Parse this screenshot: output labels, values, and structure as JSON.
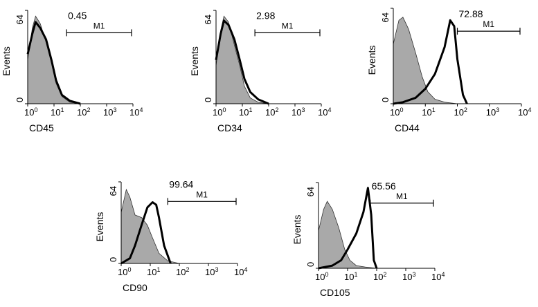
{
  "y_axis_label": "Events",
  "y_tick_top": "64",
  "y_tick_bottom": "0",
  "x_tick_labels": [
    "10",
    "10",
    "10",
    "10",
    "10"
  ],
  "x_tick_exponents": [
    "0",
    "1",
    "2",
    "3",
    "4"
  ],
  "gate_label": "M1",
  "panels": [
    {
      "id": "cd45",
      "marker": "CD45",
      "percent": "0.45"
    },
    {
      "id": "cd34",
      "marker": "CD34",
      "percent": "2.98"
    },
    {
      "id": "cd44",
      "marker": "CD44",
      "percent": "72.88"
    },
    {
      "id": "cd90",
      "marker": "CD90",
      "percent": "99.64"
    },
    {
      "id": "cd105",
      "marker": "CD105",
      "percent": "65.56"
    }
  ],
  "chart_data": [
    {
      "type": "area",
      "title": "",
      "xlabel": "CD45",
      "ylabel": "Events",
      "x_scale": "log",
      "xlim": [
        1,
        10000
      ],
      "ylim": [
        0,
        64
      ],
      "gate": {
        "name": "M1",
        "x_range": [
          30,
          10000
        ],
        "percent": 0.45
      },
      "series": [
        {
          "name": "",
          "style": "filled-grey",
          "x": [
            1,
            1.5,
            2,
            3,
            5,
            8,
            12,
            20,
            40,
            100
          ],
          "y": [
            30,
            52,
            60,
            55,
            42,
            28,
            14,
            5,
            1,
            0
          ]
        },
        {
          "name": "",
          "style": "bold-outline",
          "x": [
            1,
            1.5,
            2,
            3,
            5,
            8,
            12,
            20,
            40,
            100
          ],
          "y": [
            34,
            48,
            56,
            52,
            44,
            30,
            16,
            6,
            2,
            0
          ]
        }
      ]
    },
    {
      "type": "area",
      "title": "",
      "xlabel": "CD34",
      "ylabel": "Events",
      "x_scale": "log",
      "xlim": [
        1,
        10000
      ],
      "ylim": [
        0,
        64
      ],
      "gate": {
        "name": "M1",
        "x_range": [
          30,
          10000
        ],
        "percent": 2.98
      },
      "series": [
        {
          "name": "",
          "style": "filled-grey",
          "x": [
            1,
            1.5,
            2,
            3,
            5,
            8,
            12,
            20,
            40,
            100
          ],
          "y": [
            26,
            50,
            60,
            56,
            40,
            26,
            12,
            4,
            1,
            0
          ]
        },
        {
          "name": "",
          "style": "bold-outline",
          "x": [
            1,
            1.5,
            2,
            3,
            5,
            8,
            12,
            20,
            40,
            100
          ],
          "y": [
            30,
            48,
            57,
            54,
            44,
            30,
            17,
            8,
            3,
            0
          ]
        }
      ]
    },
    {
      "type": "area",
      "title": "",
      "xlabel": "CD44",
      "ylabel": "Events",
      "x_scale": "log",
      "xlim": [
        1,
        10000
      ],
      "ylim": [
        0,
        64
      ],
      "gate": {
        "name": "M1",
        "x_range": [
          100,
          10000
        ],
        "percent": 72.88
      },
      "series": [
        {
          "name": "",
          "style": "filled-grey",
          "x": [
            1,
            1.5,
            2,
            3,
            5,
            8,
            12,
            20,
            40,
            100
          ],
          "y": [
            40,
            56,
            58,
            50,
            34,
            18,
            8,
            3,
            1,
            0
          ]
        },
        {
          "name": "",
          "style": "bold-outline",
          "x": [
            1,
            2,
            5,
            10,
            20,
            40,
            60,
            80,
            100,
            150,
            200
          ],
          "y": [
            0,
            1,
            4,
            10,
            20,
            38,
            56,
            52,
            30,
            6,
            0
          ]
        }
      ]
    },
    {
      "type": "area",
      "title": "",
      "xlabel": "CD90",
      "ylabel": "Events",
      "x_scale": "log",
      "xlim": [
        1,
        10000
      ],
      "ylim": [
        0,
        64
      ],
      "gate": {
        "name": "M1",
        "x_range": [
          40,
          10000
        ],
        "percent": 99.64
      },
      "series": [
        {
          "name": "",
          "style": "filled-grey",
          "x": [
            1,
            1.5,
            2,
            3,
            5,
            8,
            12,
            20,
            40,
            100
          ],
          "y": [
            40,
            58,
            52,
            38,
            36,
            30,
            20,
            8,
            2,
            0
          ]
        },
        {
          "name": "",
          "style": "bold-outline",
          "x": [
            1,
            2,
            3,
            5,
            8,
            12,
            16,
            20,
            30,
            50
          ],
          "y": [
            0,
            4,
            14,
            30,
            44,
            48,
            46,
            36,
            14,
            0
          ]
        }
      ]
    },
    {
      "type": "area",
      "title": "",
      "xlabel": "CD105",
      "ylabel": "Events",
      "x_scale": "log",
      "xlim": [
        1,
        10000
      ],
      "ylim": [
        0,
        64
      ],
      "gate": {
        "name": "M1",
        "x_range": [
          60,
          10000
        ],
        "percent": 65.56
      },
      "series": [
        {
          "name": "",
          "style": "filled-grey",
          "x": [
            1,
            1.5,
            2,
            3,
            5,
            8,
            12,
            20,
            40,
            100
          ],
          "y": [
            28,
            44,
            50,
            44,
            30,
            14,
            6,
            2,
            1,
            0
          ]
        },
        {
          "name": "",
          "style": "bold-outline",
          "x": [
            1,
            3,
            6,
            10,
            20,
            35,
            50,
            65,
            80,
            100
          ],
          "y": [
            0,
            2,
            6,
            14,
            26,
            42,
            60,
            40,
            6,
            0
          ]
        }
      ]
    }
  ]
}
